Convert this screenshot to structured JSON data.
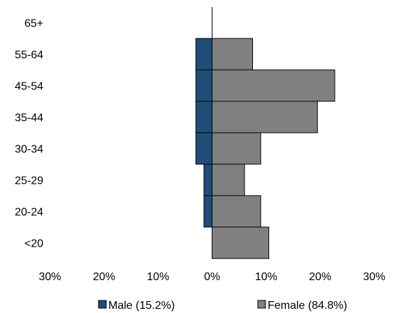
{
  "chart_data": {
    "type": "bar",
    "orientation": "horizontal",
    "subtype": "population-pyramid",
    "categories": [
      "<20",
      "20-24",
      "25-29",
      "30-34",
      "35-44",
      "45-54",
      "55-64",
      "65+"
    ],
    "series": [
      {
        "name": "Male (15.2%)",
        "color": "#1f4e79",
        "side": "left",
        "values": [
          0.0,
          1.5,
          1.5,
          3.0,
          3.0,
          3.0,
          3.0,
          0.0
        ]
      },
      {
        "name": "Female (84.8%)",
        "color": "#808080",
        "side": "right",
        "values": [
          10.5,
          9.0,
          6.0,
          9.0,
          19.5,
          22.7,
          7.5,
          0.0
        ]
      }
    ],
    "xticks": [
      "30%",
      "20%",
      "10%",
      "0%",
      "10%",
      "20%",
      "30%"
    ],
    "xlim": [
      -30,
      30
    ],
    "xlabel": "",
    "ylabel": "",
    "title": "",
    "grid": false,
    "legend_position": "bottom"
  }
}
